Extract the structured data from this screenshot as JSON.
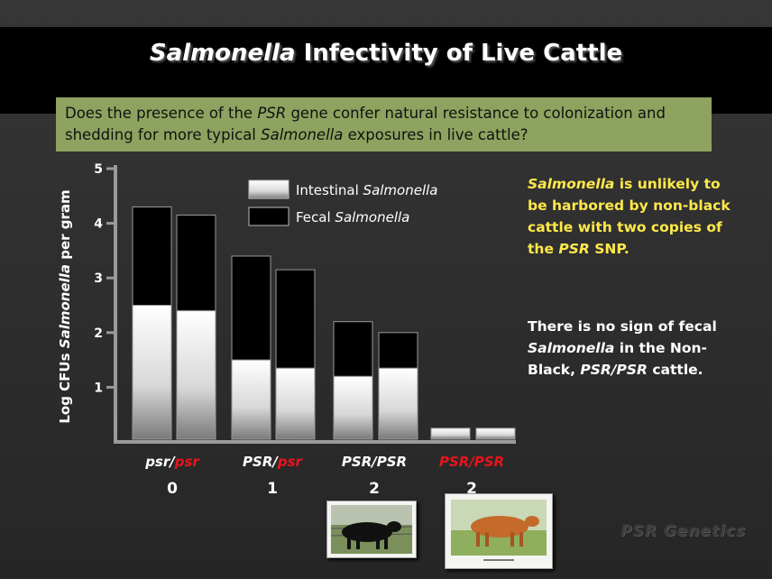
{
  "title": {
    "italic": "Salmonella",
    "rest": " Infectivity of Live Cattle"
  },
  "question": {
    "parts": [
      {
        "text": "Does the presence of the ",
        "italic": false
      },
      {
        "text": "PSR",
        "italic": true
      },
      {
        "text": " gene confer natural resistance to colonization and shedding for more typical ",
        "italic": false
      },
      {
        "text": "Salmonella",
        "italic": true
      },
      {
        "text": " exposures in live cattle?",
        "italic": false
      }
    ]
  },
  "notes": {
    "yellow": [
      {
        "text": "Salmonella",
        "italic": true
      },
      {
        "text": " is unlikely to be harbored by non-black cattle with two copies of the ",
        "italic": false
      },
      {
        "text": "PSR",
        "italic": true
      },
      {
        "text": " SNP.",
        "italic": false
      }
    ],
    "white": [
      {
        "text": "There is no sign of fecal ",
        "italic": false
      },
      {
        "text": "Salmonella",
        "italic": true
      },
      {
        "text": " in the Non-Black, ",
        "italic": false
      },
      {
        "text": "PSR/PSR",
        "italic": true
      },
      {
        "text": " cattle.",
        "italic": false
      }
    ]
  },
  "brand": "PSR Genetics",
  "colors": {
    "accent_red": "#e8141c",
    "note_yellow": "#ffe94a",
    "question_bg": "#8ea35f",
    "fecal": "#000000",
    "intestinal": "#ffffff"
  },
  "chart_data": {
    "type": "bar",
    "stacked": true,
    "ylabel_parts": [
      {
        "text": "Log CFUs ",
        "italic": false
      },
      {
        "text": "Salmonella",
        "italic": true
      },
      {
        "text": " per gram",
        "italic": false
      }
    ],
    "ylim": [
      0,
      5
    ],
    "yticks": [
      1,
      2,
      3,
      4,
      5
    ],
    "legend": [
      {
        "name_plain": "Intestinal ",
        "name_italic": "Salmonella",
        "series": "intestinal"
      },
      {
        "name_plain": "Fecal ",
        "name_italic": "Salmonella",
        "series": "fecal"
      }
    ],
    "categories": [
      {
        "label_parts": [
          {
            "text": "psr/",
            "color": "#ffffff"
          },
          {
            "text": "psr",
            "color": "#e8141c"
          }
        ],
        "count": "0"
      },
      {
        "label_parts": [
          {
            "text": "PSR/",
            "color": "#ffffff"
          },
          {
            "text": "psr",
            "color": "#e8141c"
          }
        ],
        "count": "1"
      },
      {
        "label_parts": [
          {
            "text": "PSR/PSR",
            "color": "#ffffff"
          }
        ],
        "count": "2"
      },
      {
        "label_parts": [
          {
            "text": "PSR/PSR",
            "color": "#e8141c"
          }
        ],
        "count": "2"
      }
    ],
    "bars": [
      {
        "category": 0,
        "intestinal": 2.5,
        "fecal": 1.8
      },
      {
        "category": 0,
        "intestinal": 2.4,
        "fecal": 1.75
      },
      {
        "category": 1,
        "intestinal": 1.5,
        "fecal": 1.9
      },
      {
        "category": 1,
        "intestinal": 1.35,
        "fecal": 1.8
      },
      {
        "category": 2,
        "intestinal": 1.2,
        "fecal": 1.0
      },
      {
        "category": 2,
        "intestinal": 1.35,
        "fecal": 0.65
      },
      {
        "category": 3,
        "intestinal": 0.25,
        "fecal": 0
      },
      {
        "category": 3,
        "intestinal": 0.25,
        "fecal": 0
      }
    ]
  }
}
